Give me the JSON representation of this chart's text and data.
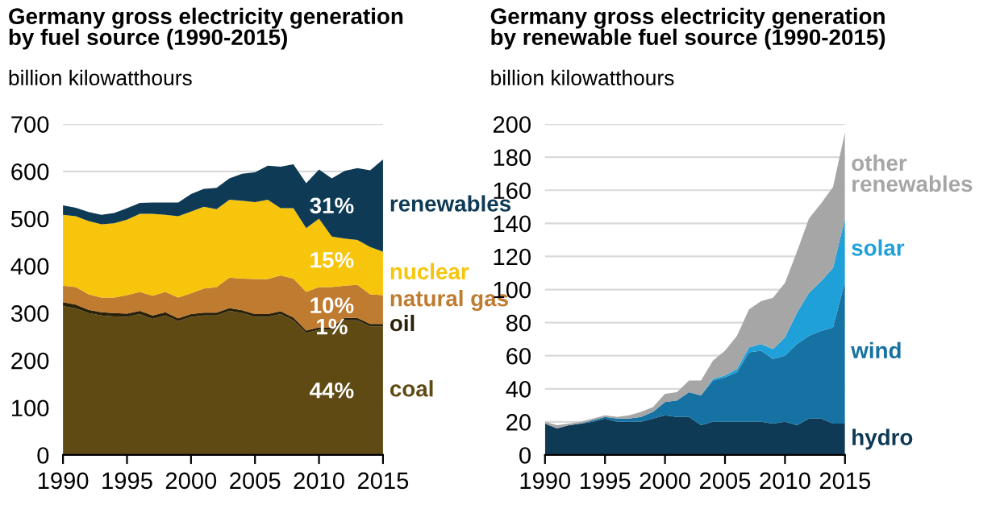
{
  "chart_data": [
    {
      "type": "area",
      "stacked": true,
      "title": "Germany gross electricity generation\nby fuel source (1990-2015)",
      "subtitle": "billion kilowatthours",
      "x": [
        1990,
        1991,
        1992,
        1993,
        1994,
        1995,
        1996,
        1997,
        1998,
        1999,
        2000,
        2001,
        2002,
        2003,
        2004,
        2005,
        2006,
        2007,
        2008,
        2009,
        2010,
        2011,
        2012,
        2013,
        2014,
        2015
      ],
      "xlim": [
        1990,
        2015
      ],
      "xticks": [
        1990,
        1995,
        2000,
        2005,
        2010,
        2015
      ],
      "ylim": [
        0,
        700
      ],
      "yticks": [
        0,
        100,
        200,
        300,
        400,
        500,
        600,
        700
      ],
      "grid": "y",
      "legend": false,
      "series": [
        {
          "name": "coal",
          "color": "#5e4a12",
          "values": [
            315,
            310,
            300,
            295,
            293,
            292,
            298,
            288,
            295,
            283,
            292,
            295,
            295,
            305,
            300,
            292,
            292,
            298,
            285,
            258,
            265,
            265,
            285,
            285,
            272,
            272
          ]
        },
        {
          "name": "oil",
          "color": "#2b2108",
          "values": [
            8,
            8,
            7,
            7,
            7,
            7,
            7,
            7,
            7,
            6,
            6,
            6,
            6,
            6,
            6,
            6,
            6,
            6,
            6,
            5,
            5,
            5,
            5,
            5,
            5,
            5
          ]
        },
        {
          "name": "natural gas",
          "color": "#bf7b2f",
          "values": [
            35,
            37,
            33,
            31,
            33,
            39,
            40,
            42,
            43,
            44,
            44,
            51,
            54,
            64,
            67,
            74,
            74,
            76,
            82,
            82,
            85,
            85,
            68,
            70,
            63,
            61
          ]
        },
        {
          "name": "nuclear",
          "color": "#f7c50b",
          "values": [
            150,
            150,
            155,
            155,
            157,
            160,
            165,
            173,
            163,
            172,
            173,
            173,
            165,
            165,
            165,
            163,
            168,
            142,
            149,
            135,
            145,
            107,
            100,
            95,
            100,
            92
          ]
        },
        {
          "name": "renewables",
          "color": "#0e3a55",
          "values": [
            20,
            18,
            19,
            20,
            22,
            24,
            23,
            24,
            26,
            29,
            37,
            38,
            45,
            45,
            57,
            63,
            72,
            88,
            93,
            95,
            104,
            123,
            143,
            152,
            162,
            195
          ]
        }
      ],
      "annotations": [
        "31%",
        "15%",
        "10%",
        "1%",
        "44%"
      ]
    },
    {
      "type": "area",
      "stacked": true,
      "title": "Germany gross electricity generation\nby renewable fuel source (1990-2015)",
      "subtitle": "billion kilowatthours",
      "x": [
        1990,
        1991,
        1992,
        1993,
        1994,
        1995,
        1996,
        1997,
        1998,
        1999,
        2000,
        2001,
        2002,
        2003,
        2004,
        2005,
        2006,
        2007,
        2008,
        2009,
        2010,
        2011,
        2012,
        2013,
        2014,
        2015
      ],
      "xlim": [
        1990,
        2015
      ],
      "xticks": [
        1990,
        1995,
        2000,
        2005,
        2010,
        2015
      ],
      "ylim": [
        0,
        200
      ],
      "yticks": [
        0,
        20,
        40,
        60,
        80,
        100,
        120,
        140,
        160,
        180,
        200
      ],
      "grid": "y",
      "legend": false,
      "series": [
        {
          "name": "hydro",
          "color": "#0e3a55",
          "values": [
            19,
            16,
            18,
            19,
            20,
            22,
            20,
            20,
            20,
            22,
            24,
            23,
            23,
            18,
            20,
            20,
            20,
            20,
            20,
            19,
            20,
            18,
            22,
            22,
            19,
            19
          ]
        },
        {
          "name": "wind",
          "color": "#1672a2",
          "values": [
            0,
            0,
            0,
            0,
            1,
            1,
            2,
            2,
            3,
            4,
            8,
            10,
            15,
            18,
            25,
            27,
            30,
            42,
            43,
            39,
            40,
            49,
            50,
            53,
            58,
            86
          ]
        },
        {
          "name": "solar",
          "color": "#20a0d8",
          "values": [
            0,
            0,
            0,
            0,
            0,
            0,
            0,
            0,
            0,
            0,
            0,
            0,
            0,
            0,
            1,
            1,
            2,
            3,
            4,
            6,
            11,
            19,
            26,
            30,
            36,
            38
          ]
        },
        {
          "name": "other\nrenewables",
          "color": "#a6a6a6",
          "values": [
            1,
            2,
            1,
            1,
            1,
            1,
            1,
            2,
            3,
            3,
            5,
            5,
            7,
            9,
            11,
            15,
            20,
            23,
            26,
            31,
            33,
            37,
            45,
            47,
            49,
            52
          ]
        }
      ]
    }
  ]
}
